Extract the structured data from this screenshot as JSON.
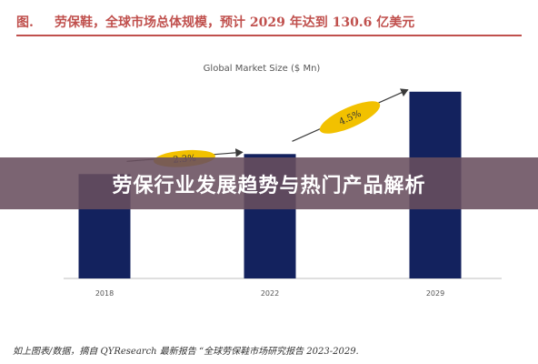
{
  "header": {
    "figure_tag": "图.",
    "caption": "劳保鞋，全球市场总体规模，预计 2029 年达到 130.6 亿美元"
  },
  "banner": {
    "title": "劳保行业发展趋势与热门产品解析"
  },
  "source_note": "如上图表/数据，摘自 QYResearch 最新报告 “全球劳保鞋市场研究报告 2023-2029.",
  "chart_data": {
    "type": "bar",
    "title": "Global Market Size ($ Mn)",
    "categories": [
      "2018",
      "2022",
      "2029"
    ],
    "values": [
      7300,
      8700,
      13060
    ],
    "ylim": [
      0,
      14000
    ],
    "grid": false,
    "legend": "none",
    "bar_color": "#13225e",
    "growth_labels": [
      "2.3%",
      "4.5%"
    ],
    "growth_label_color": "#f2c100",
    "arrow_color": "#3a3a3a"
  }
}
